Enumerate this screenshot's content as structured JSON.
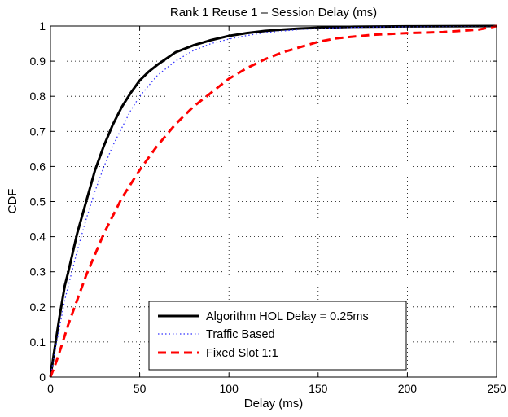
{
  "chart_data": {
    "type": "line",
    "title": "Rank 1 Reuse 1 – Session Delay (ms)",
    "xlabel": "Delay (ms)",
    "ylabel": "CDF",
    "xlim": [
      0,
      250
    ],
    "ylim": [
      0,
      1
    ],
    "xticks": [
      0,
      50,
      100,
      150,
      200,
      250
    ],
    "yticks": [
      0,
      0.1,
      0.2,
      0.3,
      0.4,
      0.5,
      0.6,
      0.7,
      0.8,
      0.9,
      1
    ],
    "xtick_labels": [
      "0",
      "50",
      "100",
      "150",
      "200",
      "250"
    ],
    "ytick_labels": [
      "0",
      "0.1",
      "0.2",
      "0.3",
      "0.4",
      "0.5",
      "0.6",
      "0.7",
      "0.8",
      "0.9",
      "1"
    ],
    "grid": true,
    "legend_position": "bottom-center",
    "series": [
      {
        "name": "Algorithm HOL Delay = 0.25ms",
        "color": "#000000",
        "style": "solid",
        "x": [
          0,
          2,
          5,
          8,
          10,
          15,
          20,
          25,
          30,
          35,
          40,
          45,
          50,
          55,
          60,
          70,
          80,
          90,
          100,
          110,
          120,
          130,
          140,
          150,
          170,
          200,
          250
        ],
        "y": [
          0,
          0.07,
          0.17,
          0.26,
          0.3,
          0.41,
          0.5,
          0.59,
          0.66,
          0.72,
          0.77,
          0.81,
          0.845,
          0.87,
          0.89,
          0.925,
          0.945,
          0.96,
          0.972,
          0.98,
          0.986,
          0.99,
          0.993,
          0.995,
          0.998,
          0.999,
          1.0
        ]
      },
      {
        "name": "Traffic Based",
        "color": "#3333ff",
        "style": "dotted",
        "x": [
          0,
          2,
          5,
          8,
          10,
          15,
          20,
          25,
          30,
          35,
          40,
          45,
          50,
          60,
          70,
          80,
          90,
          100,
          110,
          120,
          130,
          140,
          150,
          160,
          180,
          200,
          250
        ],
        "y": [
          0,
          0.06,
          0.14,
          0.22,
          0.26,
          0.36,
          0.45,
          0.53,
          0.6,
          0.66,
          0.71,
          0.76,
          0.8,
          0.86,
          0.9,
          0.93,
          0.95,
          0.963,
          0.973,
          0.981,
          0.986,
          0.99,
          0.993,
          0.995,
          0.997,
          0.998,
          1.0
        ]
      },
      {
        "name": "Fixed Slot 1:1",
        "color": "#ff0000",
        "style": "dashed",
        "x": [
          0,
          3,
          5,
          10,
          15,
          20,
          25,
          30,
          35,
          40,
          45,
          50,
          60,
          70,
          80,
          90,
          100,
          110,
          120,
          130,
          140,
          150,
          160,
          180,
          200,
          220,
          240,
          250
        ],
        "y": [
          0,
          0.04,
          0.07,
          0.15,
          0.22,
          0.29,
          0.35,
          0.41,
          0.46,
          0.51,
          0.55,
          0.59,
          0.66,
          0.72,
          0.77,
          0.81,
          0.85,
          0.88,
          0.905,
          0.925,
          0.94,
          0.955,
          0.965,
          0.975,
          0.98,
          0.983,
          0.99,
          1.0
        ]
      }
    ]
  }
}
